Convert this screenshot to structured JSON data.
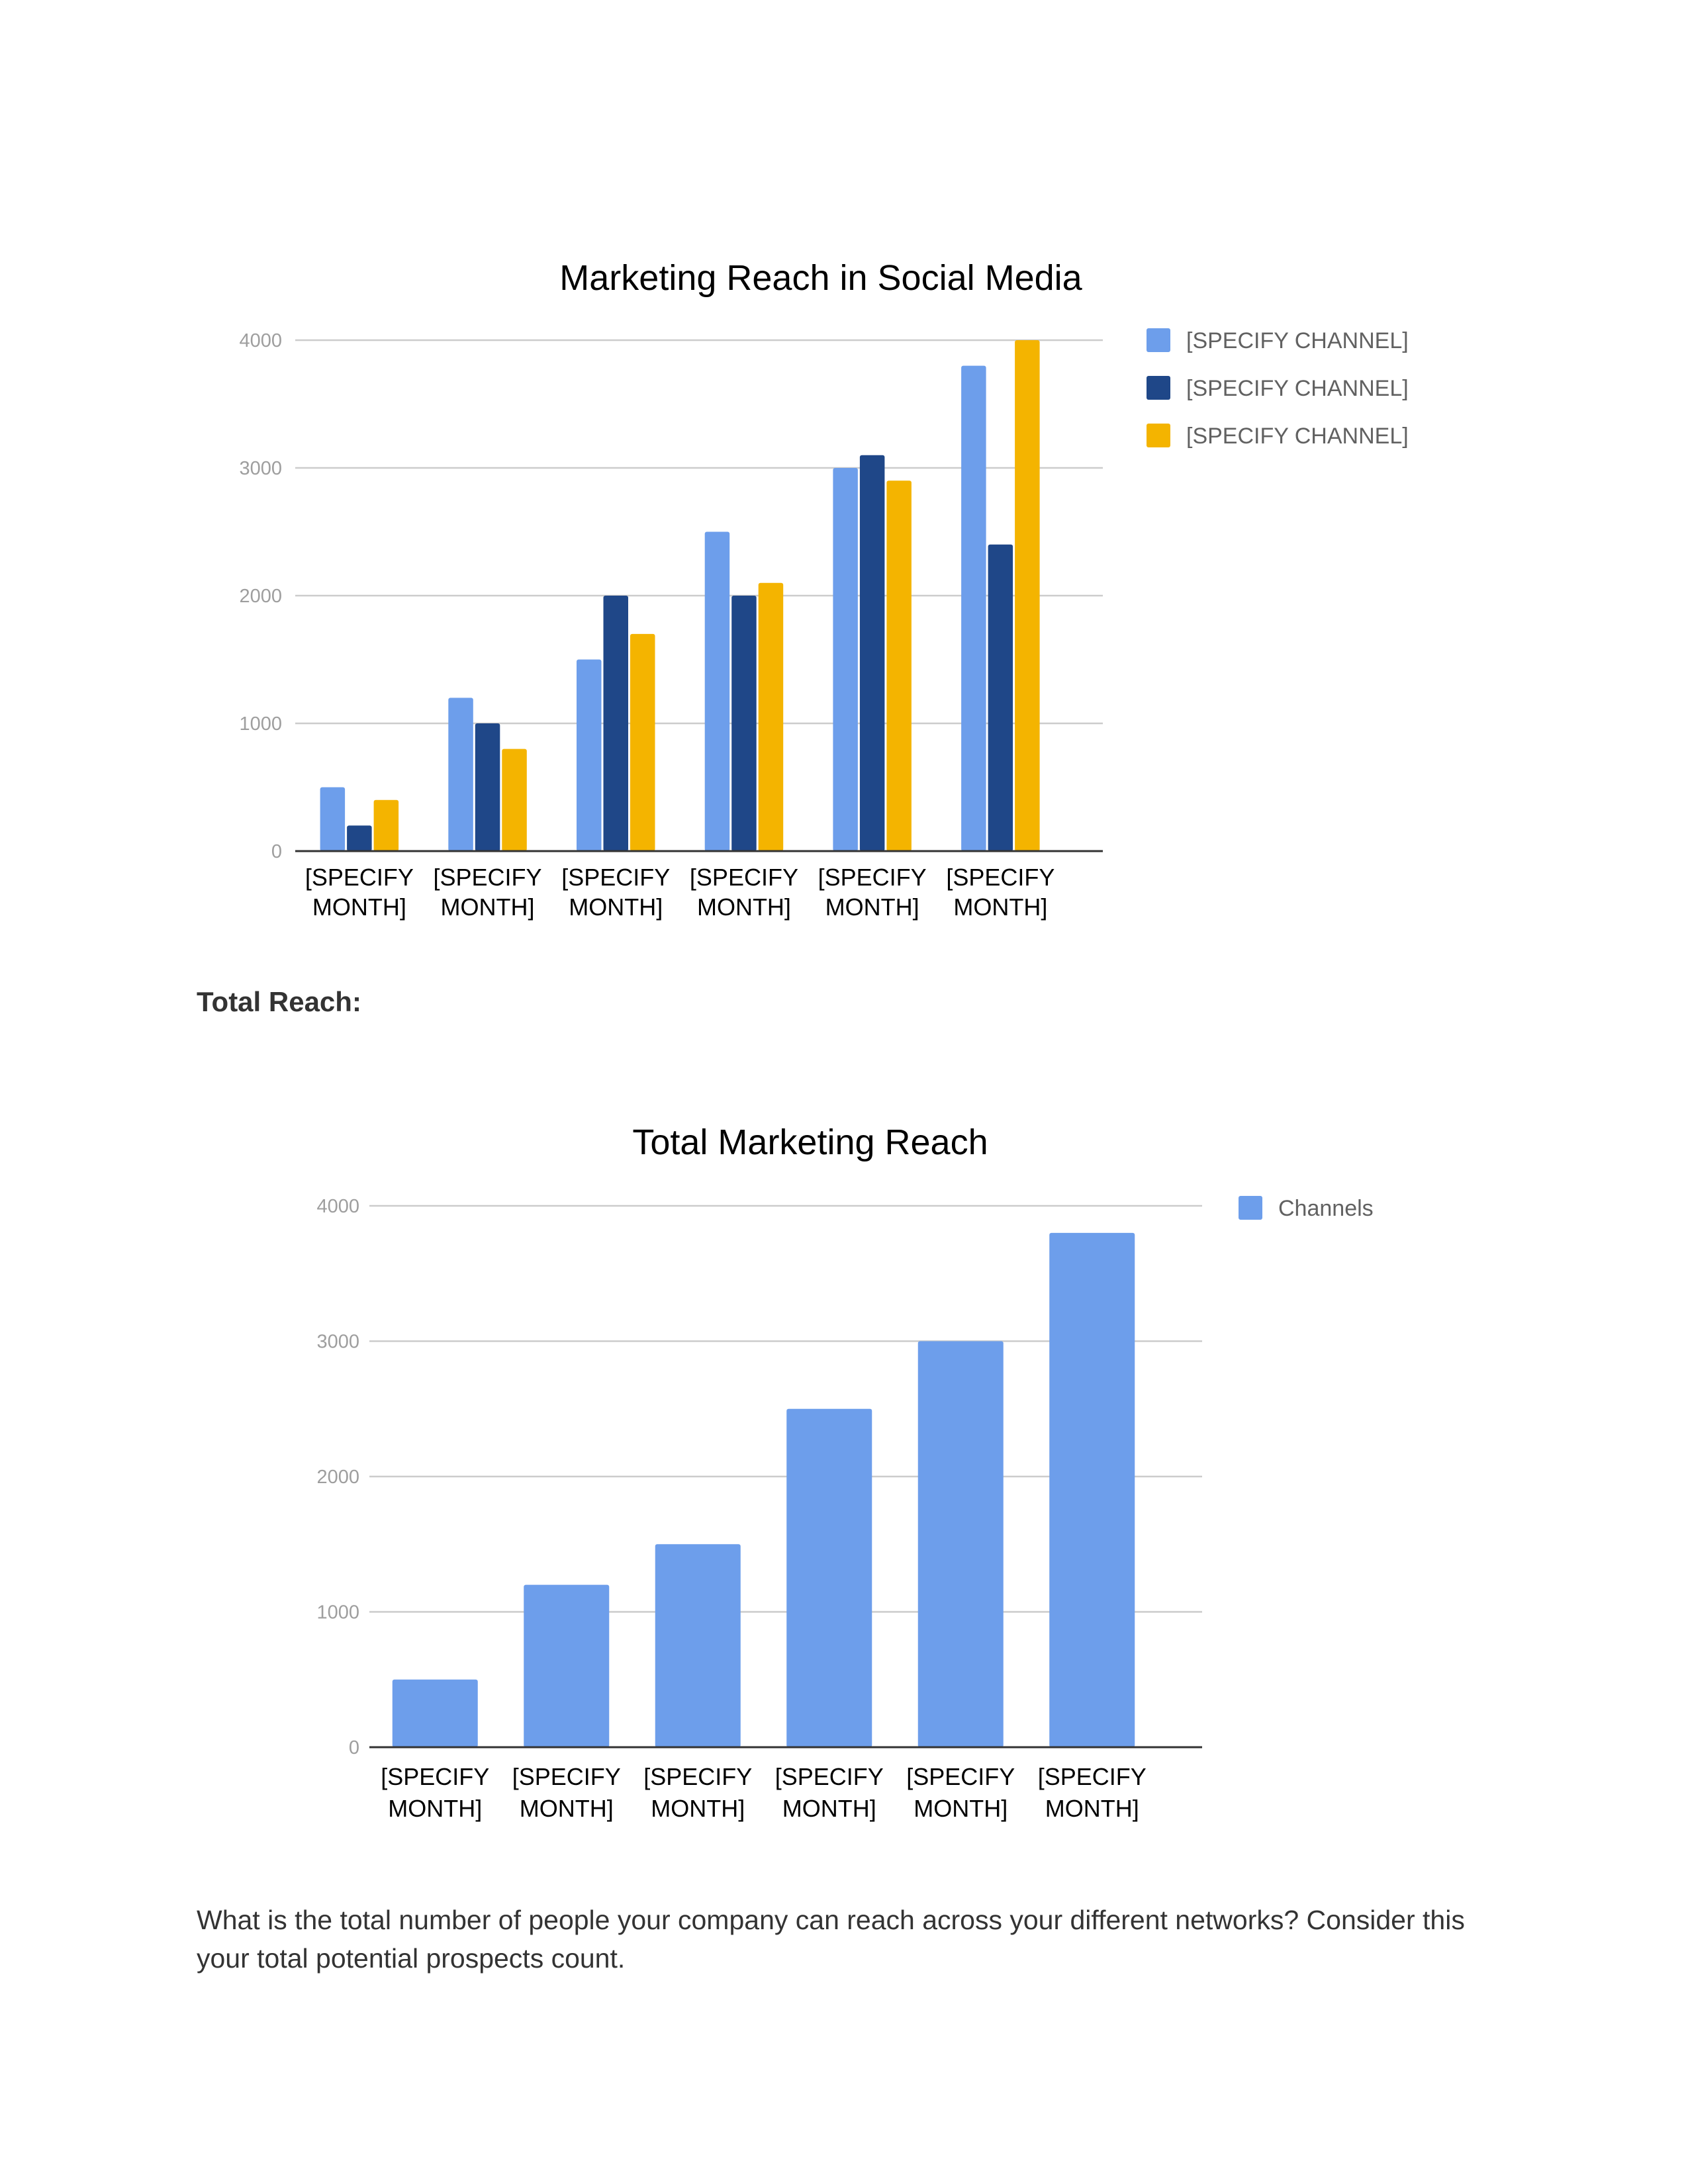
{
  "chart_data": [
    {
      "type": "bar",
      "title": "Marketing Reach in Social Media",
      "xlabel": "",
      "ylabel": "",
      "ylim": [
        0,
        4000
      ],
      "yticks": [
        0,
        1000,
        2000,
        3000,
        4000
      ],
      "grid": true,
      "legend_position": "right",
      "categories": [
        [
          "[SPECIFY",
          "MONTH]"
        ],
        [
          "[SPECIFY",
          "MONTH]"
        ],
        [
          "[SPECIFY",
          "MONTH]"
        ],
        [
          "[SPECIFY",
          "MONTH]"
        ],
        [
          "[SPECIFY",
          "MONTH]"
        ],
        [
          "[SPECIFY",
          "MONTH]"
        ]
      ],
      "series": [
        {
          "name": "[SPECIFY CHANNEL]",
          "color": "#6d9eeb",
          "values": [
            500,
            1200,
            1500,
            2500,
            3000,
            3800
          ]
        },
        {
          "name": "[SPECIFY CHANNEL]",
          "color": "#1f4788",
          "values": [
            200,
            1000,
            2000,
            2000,
            3100,
            2400
          ]
        },
        {
          "name": "[SPECIFY CHANNEL]",
          "color": "#f4b400",
          "values": [
            400,
            800,
            1700,
            2100,
            2900,
            4000
          ]
        }
      ]
    },
    {
      "type": "bar",
      "title": "Total Marketing Reach",
      "xlabel": "",
      "ylabel": "",
      "ylim": [
        0,
        4000
      ],
      "yticks": [
        0,
        1000,
        2000,
        3000,
        4000
      ],
      "grid": true,
      "legend_position": "right",
      "categories": [
        [
          "[SPECIFY",
          "MONTH]"
        ],
        [
          "[SPECIFY",
          "MONTH]"
        ],
        [
          "[SPECIFY",
          "MONTH]"
        ],
        [
          "[SPECIFY",
          "MONTH]"
        ],
        [
          "[SPECIFY",
          "MONTH]"
        ],
        [
          "[SPECIFY",
          "MONTH]"
        ]
      ],
      "series": [
        {
          "name": "Channels",
          "color": "#6d9eeb",
          "values": [
            500,
            1200,
            1500,
            2500,
            3000,
            3800
          ]
        }
      ]
    }
  ],
  "document": {
    "total_reach_heading": "Total Reach:",
    "body_text": "What is the total number of people your company can reach across your different networks? Consider this your total potential prospects count."
  },
  "colors": {
    "gridline": "#cccccc",
    "baseline": "#333333",
    "tick_text": "#9e9e9e"
  }
}
